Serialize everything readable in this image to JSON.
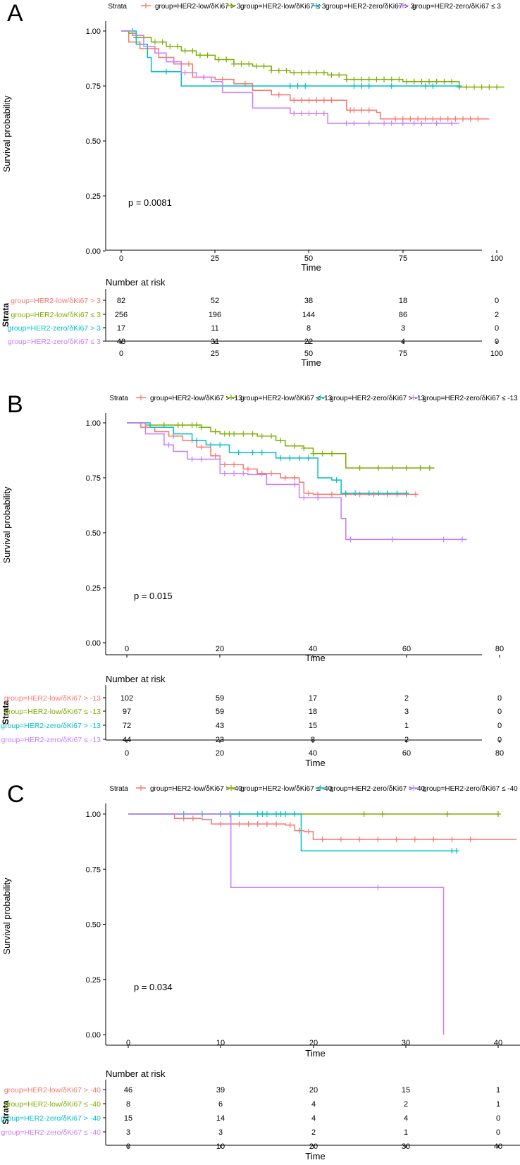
{
  "colors": {
    "HER2-low/δKi67 high": "#F8766D",
    "HER2-low/δKi67 low": "#7CAE00",
    "HER2-zero/δKi67 high": "#00BFC4",
    "HER2-zero/δKi67 low": "#C77CFF",
    "axis": "#000000"
  },
  "chart_data": [
    {
      "panel": "A",
      "type": "line",
      "subtype": "kaplan-meier",
      "legend_title": "Strata",
      "xlabel": "Time",
      "ylabel": "Survival probability",
      "xlim": [
        0,
        100
      ],
      "ylim": [
        0,
        1
      ],
      "x_ticks": [
        "0",
        "25",
        "50",
        "75",
        "100"
      ],
      "y_ticks": [
        "0.00",
        "0.25",
        "0.50",
        "0.75",
        "1.00"
      ],
      "pvalue": "p = 0.0081",
      "risk_title": "Number at risk",
      "risk_axis_label": "Strata",
      "risk_times": [
        0,
        25,
        50,
        75,
        100
      ],
      "series": [
        {
          "name": "group=HER2-low/δKi67 > 3",
          "color_key": "HER2-low/δKi67 high",
          "steps": [
            [
              0,
              1.0
            ],
            [
              2,
              0.95
            ],
            [
              5,
              0.92
            ],
            [
              10,
              0.88
            ],
            [
              14,
              0.85
            ],
            [
              19,
              0.79
            ],
            [
              25,
              0.78
            ],
            [
              30,
              0.76
            ],
            [
              35,
              0.73
            ],
            [
              40,
              0.71
            ],
            [
              45,
              0.685
            ],
            [
              55,
              0.685
            ],
            [
              60,
              0.64
            ],
            [
              68,
              0.63
            ],
            [
              69,
              0.6
            ],
            [
              98,
              0.6
            ]
          ],
          "censor": [
            18,
            22,
            27,
            33,
            42,
            46,
            48,
            50,
            52,
            54,
            56,
            61,
            62,
            64,
            66,
            73,
            75,
            77,
            79,
            81,
            83,
            85,
            87,
            89,
            91,
            93,
            95
          ],
          "risk": [
            "82",
            "52",
            "38",
            "18",
            "0"
          ]
        },
        {
          "name": "group=HER2-low/δKi67 ≤ 3",
          "color_key": "HER2-low/δKi67 low",
          "steps": [
            [
              0,
              1.0
            ],
            [
              2,
              0.99
            ],
            [
              4,
              0.97
            ],
            [
              8,
              0.95
            ],
            [
              12,
              0.93
            ],
            [
              16,
              0.91
            ],
            [
              20,
              0.89
            ],
            [
              25,
              0.87
            ],
            [
              30,
              0.85
            ],
            [
              35,
              0.84
            ],
            [
              40,
              0.82
            ],
            [
              45,
              0.81
            ],
            [
              55,
              0.8
            ],
            [
              60,
              0.78
            ],
            [
              70,
              0.78
            ],
            [
              75,
              0.77
            ],
            [
              90,
              0.745
            ],
            [
              102,
              0.745
            ]
          ],
          "censor": [
            4,
            6,
            9,
            11,
            13,
            15,
            17,
            19,
            21,
            23,
            26,
            28,
            30,
            32,
            34,
            36,
            38,
            40,
            42,
            44,
            46,
            48,
            50,
            52,
            54,
            56,
            58,
            60,
            62,
            64,
            66,
            68,
            70,
            72,
            74,
            76,
            78,
            80,
            82,
            84,
            86,
            88,
            90,
            92,
            94,
            96,
            98,
            100
          ],
          "risk": [
            "256",
            "196",
            "144",
            "86",
            "2"
          ]
        },
        {
          "name": "group=HER2-zero/δKi67 > 3",
          "color_key": "HER2-zero/δKi67 high",
          "steps": [
            [
              0,
              1.0
            ],
            [
              4,
              0.94
            ],
            [
              7,
              0.88
            ],
            [
              8,
              0.815
            ],
            [
              16,
              0.75
            ],
            [
              90,
              0.75
            ]
          ],
          "censor": [
            3,
            12,
            45,
            47,
            49,
            62,
            64,
            66,
            72,
            81,
            83,
            90
          ],
          "risk": [
            "17",
            "11",
            "8",
            "3",
            "0"
          ]
        },
        {
          "name": "group=HER2-zero/δKi67 ≤ 3",
          "color_key": "HER2-zero/δKi67 low",
          "steps": [
            [
              0,
              1.0
            ],
            [
              3,
              0.98
            ],
            [
              6,
              0.93
            ],
            [
              9,
              0.9
            ],
            [
              12,
              0.86
            ],
            [
              16,
              0.81
            ],
            [
              20,
              0.79
            ],
            [
              24,
              0.77
            ],
            [
              27,
              0.72
            ],
            [
              35,
              0.65
            ],
            [
              40,
              0.65
            ],
            [
              45,
              0.625
            ],
            [
              55,
              0.58
            ],
            [
              90,
              0.58
            ]
          ],
          "censor": [
            14,
            17,
            22,
            46,
            48,
            50,
            52,
            54,
            60,
            62,
            66,
            70,
            72,
            75,
            78,
            80,
            84,
            88
          ],
          "risk": [
            "48",
            "31",
            "22",
            "4",
            "0"
          ]
        }
      ]
    },
    {
      "panel": "B",
      "type": "line",
      "subtype": "kaplan-meier",
      "legend_title": "Strata",
      "xlabel": "Time",
      "ylabel": "Survival probability",
      "xlim": [
        0,
        80
      ],
      "ylim": [
        0,
        1
      ],
      "x_ticks": [
        "0",
        "20",
        "40",
        "60",
        "80"
      ],
      "y_ticks": [
        "0.00",
        "0.25",
        "0.50",
        "0.75",
        "1.00"
      ],
      "pvalue": "p = 0.015",
      "risk_title": "Number at risk",
      "risk_axis_label": "Strata",
      "risk_times": [
        0,
        20,
        40,
        60,
        80
      ],
      "series": [
        {
          "name": "group=HER2-low/δKi67 > -13",
          "color_key": "HER2-low/δKi67 high",
          "steps": [
            [
              0,
              1.0
            ],
            [
              3,
              0.98
            ],
            [
              6,
              0.96
            ],
            [
              9,
              0.94
            ],
            [
              12,
              0.92
            ],
            [
              15,
              0.89
            ],
            [
              18,
              0.85
            ],
            [
              20,
              0.81
            ],
            [
              25,
              0.79
            ],
            [
              28,
              0.77
            ],
            [
              33,
              0.75
            ],
            [
              37,
              0.73
            ],
            [
              38,
              0.68
            ],
            [
              40,
              0.675
            ],
            [
              62,
              0.675
            ]
          ],
          "censor": [
            10,
            14,
            16,
            19,
            21,
            23,
            26,
            29,
            31,
            34,
            36,
            39,
            41,
            44,
            47,
            50,
            53,
            56,
            58,
            60,
            62
          ],
          "risk": [
            "102",
            "59",
            "17",
            "2",
            "0"
          ]
        },
        {
          "name": "group=HER2-low/δKi67 ≤ -13",
          "color_key": "HER2-low/δKi67 low",
          "steps": [
            [
              0,
              1.0
            ],
            [
              4,
              0.99
            ],
            [
              10,
              0.99
            ],
            [
              16,
              0.98
            ],
            [
              18,
              0.96
            ],
            [
              20,
              0.95
            ],
            [
              28,
              0.94
            ],
            [
              32,
              0.92
            ],
            [
              34,
              0.895
            ],
            [
              38,
              0.885
            ],
            [
              40,
              0.86
            ],
            [
              46,
              0.86
            ],
            [
              47,
              0.795
            ],
            [
              66,
              0.795
            ]
          ],
          "censor": [
            8,
            11,
            12,
            14,
            15,
            16,
            19,
            21,
            22,
            23,
            25,
            27,
            29,
            31,
            33,
            36,
            38,
            40,
            42,
            44,
            50,
            54,
            57,
            60,
            63,
            65
          ],
          "risk": [
            "97",
            "59",
            "18",
            "3",
            "0"
          ]
        },
        {
          "name": "group=HER2-zero/δKi67 > -13",
          "color_key": "HER2-zero/δKi67 high",
          "steps": [
            [
              0,
              1.0
            ],
            [
              5,
              0.98
            ],
            [
              10,
              0.95
            ],
            [
              14,
              0.92
            ],
            [
              17,
              0.9
            ],
            [
              22,
              0.865
            ],
            [
              30,
              0.865
            ],
            [
              32,
              0.84
            ],
            [
              40,
              0.84
            ],
            [
              41,
              0.75
            ],
            [
              44,
              0.74
            ],
            [
              46,
              0.68
            ],
            [
              60,
              0.68
            ]
          ],
          "censor": [
            15,
            18,
            20,
            24,
            27,
            29,
            33,
            35,
            37,
            39,
            45,
            47,
            49,
            52,
            54,
            56,
            58,
            60
          ],
          "risk": [
            "72",
            "43",
            "15",
            "1",
            "0"
          ]
        },
        {
          "name": "group=HER2-zero/δKi67 ≤ -13",
          "color_key": "HER2-zero/δKi67 low",
          "steps": [
            [
              0,
              1.0
            ],
            [
              4,
              0.95
            ],
            [
              8,
              0.9
            ],
            [
              10,
              0.87
            ],
            [
              13,
              0.835
            ],
            [
              20,
              0.77
            ],
            [
              26,
              0.765
            ],
            [
              30,
              0.72
            ],
            [
              36,
              0.72
            ],
            [
              37,
              0.66
            ],
            [
              44,
              0.66
            ],
            [
              46,
              0.565
            ],
            [
              47,
              0.47
            ],
            [
              73,
              0.47
            ]
          ],
          "censor": [
            9,
            14,
            16,
            21,
            23,
            25,
            36,
            38,
            41,
            48,
            57,
            68,
            72
          ],
          "risk": [
            "44",
            "23",
            "8",
            "2",
            "0"
          ]
        }
      ]
    },
    {
      "panel": "C",
      "type": "line",
      "subtype": "kaplan-meier",
      "legend_title": "Strata",
      "xlabel": "Time",
      "ylabel": "Survival probability",
      "xlim": [
        0,
        40
      ],
      "ylim": [
        0,
        1
      ],
      "x_ticks": [
        "0",
        "10",
        "20",
        "30",
        "40"
      ],
      "y_ticks": [
        "0.00",
        "0.25",
        "0.50",
        "0.75",
        "1.00"
      ],
      "pvalue": "p = 0.034",
      "risk_title": "Number at risk",
      "risk_axis_label": "Strata",
      "risk_times": [
        0,
        10,
        20,
        30,
        40
      ],
      "series": [
        {
          "name": "group=HER2-low/δKi67 > -40",
          "color_key": "HER2-low/δKi67 high",
          "steps": [
            [
              0,
              1.0
            ],
            [
              5,
              0.98
            ],
            [
              8,
              0.975
            ],
            [
              9,
              0.955
            ],
            [
              17,
              0.95
            ],
            [
              18,
              0.925
            ],
            [
              19,
              0.92
            ],
            [
              20,
              0.885
            ],
            [
              42,
              0.885
            ]
          ],
          "censor": [
            6,
            7,
            10,
            12,
            13,
            14,
            15,
            16,
            17.5,
            18.5,
            19.5,
            21,
            23,
            25,
            27,
            29,
            31,
            33,
            35,
            37
          ],
          "risk": [
            "46",
            "39",
            "20",
            "15",
            "1"
          ]
        },
        {
          "name": "group=HER2-low/δKi67 ≤ -40",
          "color_key": "HER2-low/δKi67 low",
          "steps": [
            [
              0,
              1.0
            ],
            [
              40,
              1.0
            ]
          ],
          "censor": [
            25.5,
            27.5,
            34.5,
            40
          ],
          "risk": [
            "8",
            "6",
            "4",
            "2",
            "1"
          ]
        },
        {
          "name": "group=HER2-zero/δKi67 > -40",
          "color_key": "HER2-zero/δKi67 high",
          "steps": [
            [
              0,
              1.0
            ],
            [
              18.6,
              1.0
            ],
            [
              18.7,
              0.833
            ],
            [
              35.5,
              0.833
            ]
          ],
          "censor": [
            6,
            8,
            10,
            11,
            12,
            14,
            14.5,
            15,
            16,
            16.5,
            17,
            18,
            35,
            35.5
          ],
          "risk": [
            "15",
            "14",
            "4",
            "4",
            "0"
          ]
        },
        {
          "name": "group=HER2-zero/δKi67 ≤ -40",
          "color_key": "HER2-zero/δKi67 low",
          "steps": [
            [
              0,
              1.0
            ],
            [
              11,
              1.0
            ],
            [
              11.1,
              0.667
            ],
            [
              34,
              0.667
            ],
            [
              34.1,
              0.0
            ]
          ],
          "censor": [
            27
          ],
          "risk": [
            "3",
            "3",
            "2",
            "1",
            "0"
          ]
        }
      ]
    }
  ],
  "panel_labels": [
    "A",
    "B",
    "C"
  ]
}
